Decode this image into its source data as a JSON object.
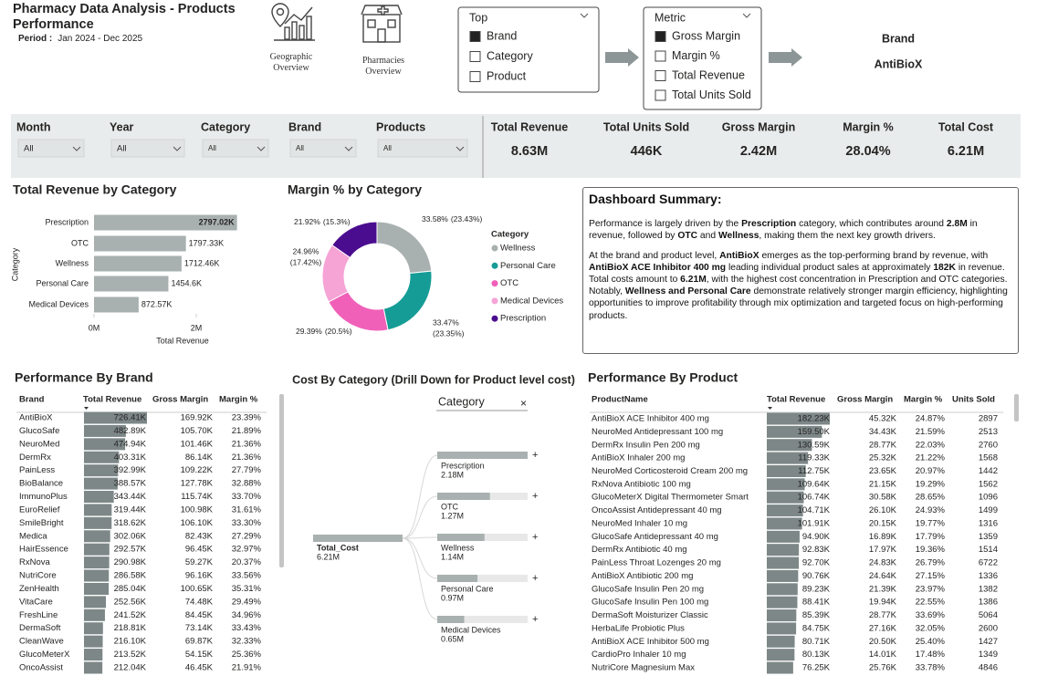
{
  "header": {
    "title": "Pharmacy Data Analysis - Products Performance",
    "period_label": "Period :",
    "period": "Jan 2024 - Dec 2025"
  },
  "navigation": [
    "Geographic Overview",
    "Pharmacies Overview"
  ],
  "top_slicer": {
    "title": "Top",
    "options": [
      "Brand",
      "Category",
      "Product"
    ],
    "selected": 0
  },
  "metric_slicer": {
    "title": "Metric",
    "options": [
      "Gross Margin",
      "Margin %",
      "Total Revenue",
      "Total Units Sold"
    ],
    "selected": 0
  },
  "selection": {
    "label": "Brand",
    "value": "AntiBioX"
  },
  "filters": [
    {
      "label": "Month",
      "value": "All"
    },
    {
      "label": "Year",
      "value": "All"
    },
    {
      "label": "Category",
      "value": "All"
    },
    {
      "label": "Brand",
      "value": "All"
    },
    {
      "label": "Products",
      "value": "All"
    }
  ],
  "kpis": [
    {
      "label": "Total Revenue",
      "value": "8.63M"
    },
    {
      "label": "Total Units Sold",
      "value": "446K"
    },
    {
      "label": "Gross Margin",
      "value": "2.42M"
    },
    {
      "label": "Margin %",
      "value": "28.04%"
    },
    {
      "label": "Total Cost",
      "value": "6.21M"
    }
  ],
  "chart_data": [
    {
      "type": "bar",
      "orientation": "horizontal",
      "title": "Total Revenue by Category",
      "x_label": "Total Revenue",
      "y_label": "Category",
      "categories": [
        "Prescription",
        "OTC",
        "Wellness",
        "Personal Care",
        "Medical Devices"
      ],
      "values": [
        2797020,
        1797330,
        1712460,
        1454600,
        872570
      ],
      "value_labels": [
        "2797.02K",
        "1797.33K",
        "1712.46K",
        "1454.6K",
        "872.57K"
      ],
      "color": "#a9b0b0",
      "xlim": [
        0,
        3000000
      ],
      "xticks": [
        {
          "value": 0,
          "label": "0M"
        },
        {
          "value": 2000000,
          "label": "2M"
        }
      ]
    },
    {
      "type": "donut",
      "title": "Margin % by Category",
      "legend_title": "Category",
      "categories": [
        "Wellness",
        "Personal Care",
        "OTC",
        "Medical Devices",
        "Prescription"
      ],
      "values": [
        33.58,
        33.47,
        29.39,
        24.96,
        21.92
      ],
      "value_labels": [
        "33.58%",
        "33.47%",
        "29.39%",
        "24.96%",
        "21.92%"
      ],
      "shares": [
        23.43,
        23.35,
        20.5,
        17.42,
        15.3
      ],
      "share_labels": [
        "(23.43%)",
        "(23.35%)",
        "(20.5%)",
        "(17.42%)",
        "(15.3%)"
      ],
      "colors": [
        "#a9b0b0",
        "#169c96",
        "#f060b8",
        "#f6a3d6",
        "#4b0d8f"
      ]
    },
    {
      "type": "decomposition_tree",
      "title": "Cost By Category (Drill Down for Product level cost)",
      "level_label": "Category",
      "root": {
        "name": "Total_Cost",
        "value": 6210000,
        "value_label": "6.21M"
      },
      "categories": [
        "Prescription",
        "OTC",
        "Wellness",
        "Personal Care",
        "Medical Devices"
      ],
      "values": [
        2180000,
        1270000,
        1140000,
        970000,
        650000
      ],
      "value_labels": [
        "2.18M",
        "1.27M",
        "1.14M",
        "0.97M",
        "0.65M"
      ],
      "color": "#a9b0b0"
    }
  ],
  "summary": {
    "title": "Dashboard Summary:",
    "paragraphs": [
      [
        "Performance is largely driven by the ",
        "Prescription",
        " category, which contributes around ",
        "2.8M",
        " in revenue, followed by ",
        "OTC",
        " and ",
        "Wellness",
        ", making them the next key growth drivers."
      ],
      [
        "At the brand and product level, ",
        "AntiBioX",
        " emerges as the top-performing brand by revenue, with ",
        "AntiBioX ACE Inhibitor 400 mg",
        " leading individual product sales at approximately ",
        "182K",
        " in revenue. Total costs amount to ",
        "6.21M",
        ", with the highest cost concentration in Prescription and OTC categories. Notably, ",
        "Wellness and Personal Care",
        " demonstrate relatively stronger margin efficiency, highlighting opportunities to improve profitability through mix optimization and targeted focus on high-performing products."
      ]
    ]
  },
  "brand_table": {
    "title": "Performance By Brand",
    "columns": [
      "Brand",
      "Total Revenue",
      "Gross Margin",
      "Margin %"
    ],
    "names": [
      "AntiBioX",
      "GlucoSafe",
      "NeuroMed",
      "DermRx",
      "PainLess",
      "BioBalance",
      "ImmunoPlus",
      "EuroRelief",
      "SmileBright",
      "Medica",
      "HairEssence",
      "RxNova",
      "NutriCore",
      "ZenHealth",
      "VitaCare",
      "FreshLine",
      "DermaSoft",
      "CleanWave",
      "GlucoMeterX",
      "OncoAssist"
    ],
    "revenue": [
      726410,
      482890,
      474940,
      403310,
      392990,
      388570,
      343440,
      319440,
      318620,
      302060,
      292570,
      290980,
      286580,
      285040,
      252560,
      241520,
      218810,
      216100,
      213520,
      212040
    ],
    "revenue_labels": [
      "726.41K",
      "482.89K",
      "474.94K",
      "403.31K",
      "392.99K",
      "388.57K",
      "343.44K",
      "319.44K",
      "318.62K",
      "302.06K",
      "292.57K",
      "290.98K",
      "286.58K",
      "285.04K",
      "252.56K",
      "241.52K",
      "218.81K",
      "216.10K",
      "213.52K",
      "212.04K"
    ],
    "gross_margin": [
      "169.92K",
      "105.70K",
      "101.46K",
      "86.14K",
      "109.22K",
      "127.78K",
      "115.74K",
      "100.98K",
      "106.10K",
      "82.43K",
      "96.45K",
      "59.27K",
      "96.16K",
      "100.65K",
      "74.48K",
      "84.45K",
      "73.14K",
      "69.87K",
      "54.15K",
      "46.45K"
    ],
    "margin": [
      "23.39%",
      "21.89%",
      "21.36%",
      "21.36%",
      "27.79%",
      "32.88%",
      "33.70%",
      "31.61%",
      "33.30%",
      "27.29%",
      "32.97%",
      "20.37%",
      "33.56%",
      "35.31%",
      "29.49%",
      "34.96%",
      "33.43%",
      "32.33%",
      "25.36%",
      "21.91%"
    ]
  },
  "product_table": {
    "title": "Performance By Product",
    "columns": [
      "ProductName",
      "Total Revenue",
      "Gross Margin",
      "Margin %",
      "Units Sold"
    ],
    "names": [
      "AntiBioX ACE Inhibitor 400 mg",
      "NeuroMed Antidepressant 100 mg",
      "DermRx Insulin Pen 200 mg",
      "AntiBioX Inhaler 200 mg",
      "NeuroMed Corticosteroid Cream 200 mg",
      "RxNova Antibiotic 100 mg",
      "GlucoMeterX Digital Thermometer Smart",
      "OncoAssist Antidepressant 40 mg",
      "NeuroMed Inhaler 10 mg",
      "GlucoSafe Antidepressant 40 mg",
      "DermRx Antibiotic 40 mg",
      "PainLess Throat Lozenges 20 mg",
      "AntiBioX Antibiotic 200 mg",
      "GlucoSafe Insulin Pen 20 mg",
      "GlucoSafe Insulin Pen 100 mg",
      "DermaSoft Moisturizer Classic",
      "HerbaLife Probiotic Plus",
      "AntiBioX ACE Inhibitor 500 mg",
      "CardioPro Inhaler 10 mg",
      "NutriCore Magnesium Max"
    ],
    "revenue": [
      182230,
      159500,
      130590,
      119330,
      112750,
      109640,
      106740,
      104710,
      101910,
      94900,
      92830,
      92700,
      90760,
      89230,
      88410,
      85390,
      84750,
      80710,
      80130,
      76250
    ],
    "revenue_labels": [
      "182.23K",
      "159.50K",
      "130.59K",
      "119.33K",
      "112.75K",
      "109.64K",
      "106.74K",
      "104.71K",
      "101.91K",
      "94.90K",
      "92.83K",
      "92.70K",
      "90.76K",
      "89.23K",
      "88.41K",
      "85.39K",
      "84.75K",
      "80.71K",
      "80.13K",
      "76.25K"
    ],
    "gross_margin": [
      "45.32K",
      "34.43K",
      "28.77K",
      "25.32K",
      "23.65K",
      "21.15K",
      "30.58K",
      "26.10K",
      "20.15K",
      "16.89K",
      "17.97K",
      "24.83K",
      "24.64K",
      "21.39K",
      "19.94K",
      "28.77K",
      "27.16K",
      "20.50K",
      "14.01K",
      "25.76K"
    ],
    "margin": [
      "24.87%",
      "21.59%",
      "22.03%",
      "21.22%",
      "20.97%",
      "19.29%",
      "28.65%",
      "24.93%",
      "19.77%",
      "17.79%",
      "19.36%",
      "26.79%",
      "27.15%",
      "23.97%",
      "22.55%",
      "33.69%",
      "32.05%",
      "25.40%",
      "17.48%",
      "33.78%"
    ],
    "units": [
      2897,
      2513,
      2760,
      1568,
      1442,
      1562,
      1096,
      1499,
      1316,
      1359,
      1514,
      6722,
      1336,
      1382,
      1386,
      5064,
      2600,
      1427,
      1349,
      4846
    ]
  }
}
